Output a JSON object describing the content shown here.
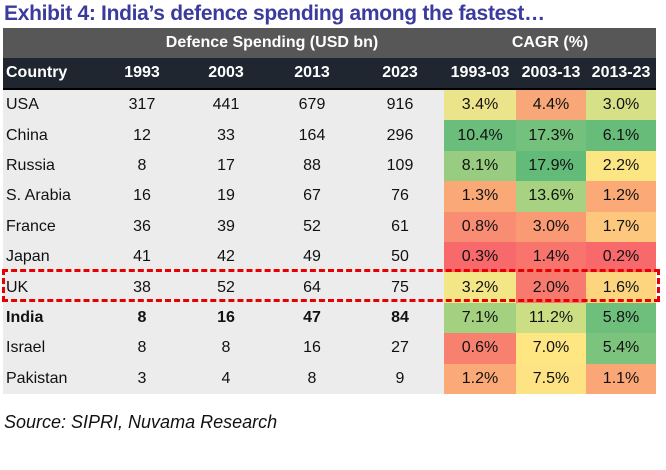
{
  "title": "Exhibit 4: India’s defence spending among the fastest…",
  "group_headers": {
    "spending": "Defence Spending (USD bn)",
    "cagr": "CAGR (%)"
  },
  "columns": [
    "Country",
    "1993",
    "2003",
    "2013",
    "2023",
    "1993-03",
    "2003-13",
    "2013-23"
  ],
  "rows": [
    {
      "country": "USA",
      "v": [
        "317",
        "441",
        "679",
        "916"
      ],
      "cagr": [
        "3.4%",
        "4.4%",
        "3.0%"
      ],
      "colors": [
        "#ebe48a",
        "#f8a878",
        "#d6e087"
      ]
    },
    {
      "country": "China",
      "v": [
        "12",
        "33",
        "164",
        "296"
      ],
      "cagr": [
        "10.4%",
        "17.3%",
        "6.1%"
      ],
      "colors": [
        "#6abd7b",
        "#74c17d",
        "#68bc7a"
      ]
    },
    {
      "country": "Russia",
      "v": [
        "8",
        "17",
        "88",
        "109"
      ],
      "cagr": [
        "8.1%",
        "17.9%",
        "2.2%"
      ],
      "colors": [
        "#98cc80",
        "#63bb7a",
        "#fce683"
      ]
    },
    {
      "country": "S. Arabia",
      "v": [
        "16",
        "19",
        "67",
        "76"
      ],
      "cagr": [
        "1.3%",
        "13.6%",
        "1.2%"
      ],
      "colors": [
        "#fba877",
        "#a6d281",
        "#fbaa77"
      ]
    },
    {
      "country": "France",
      "v": [
        "36",
        "39",
        "52",
        "61"
      ],
      "cagr": [
        "0.8%",
        "3.0%",
        "1.7%"
      ],
      "colors": [
        "#f98d73",
        "#f99a75",
        "#fdc87d"
      ]
    },
    {
      "country": "Japan",
      "v": [
        "41",
        "42",
        "49",
        "50"
      ],
      "cagr": [
        "0.3%",
        "1.4%",
        "0.2%"
      ],
      "colors": [
        "#f8696b",
        "#f8746d",
        "#f8696b"
      ]
    },
    {
      "country": "UK",
      "v": [
        "38",
        "52",
        "64",
        "75"
      ],
      "cagr": [
        "3.2%",
        "2.0%",
        "1.6%"
      ],
      "colors": [
        "#f3e686",
        "#f8796e",
        "#fdd57f"
      ]
    },
    {
      "country": "India",
      "v": [
        "8",
        "16",
        "47",
        "84"
      ],
      "cagr": [
        "7.1%",
        "11.2%",
        "5.8%"
      ],
      "colors": [
        "#a3d17f",
        "#cbde84",
        "#6fbf7c"
      ],
      "bold": true
    },
    {
      "country": "Israel",
      "v": [
        "8",
        "8",
        "16",
        "27"
      ],
      "cagr": [
        "0.6%",
        "7.0%",
        "5.4%"
      ],
      "colors": [
        "#f8806f",
        "#fee783",
        "#7cc37d"
      ]
    },
    {
      "country": "Pakistan",
      "v": [
        "3",
        "4",
        "8",
        "9"
      ],
      "cagr": [
        "1.2%",
        "7.5%",
        "1.1%"
      ],
      "colors": [
        "#fbaa77",
        "#fde383",
        "#fba677"
      ]
    }
  ],
  "source": "Source: SIPRI, Nuvama Research"
}
